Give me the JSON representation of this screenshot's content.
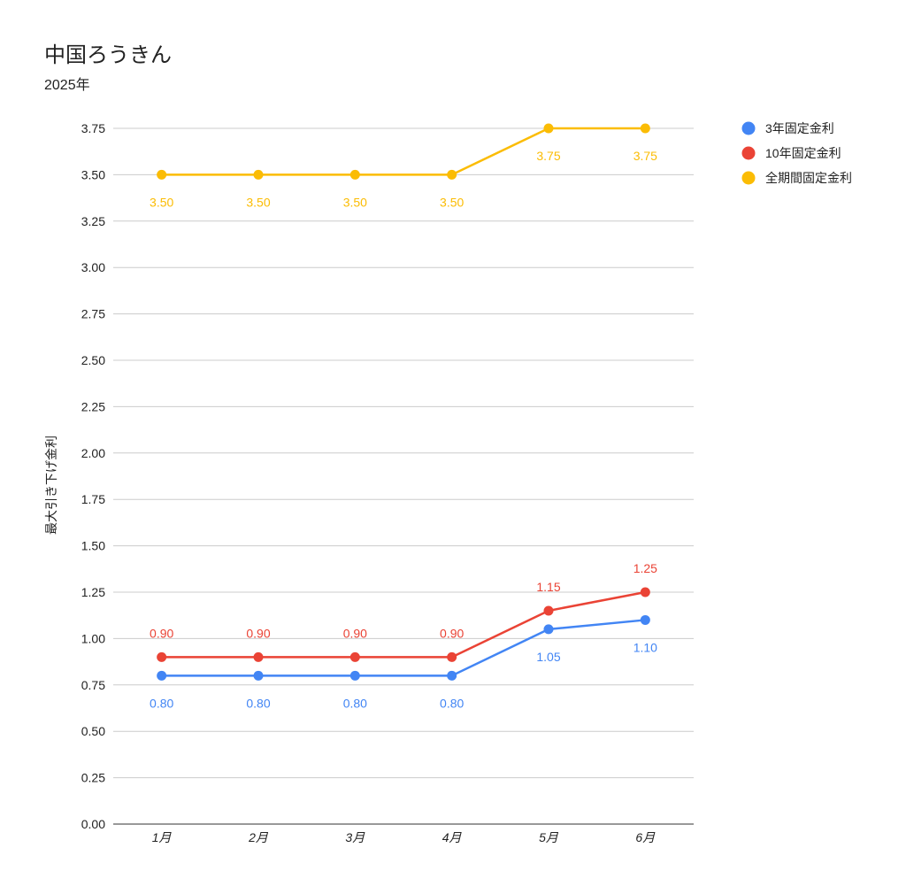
{
  "chart_data": {
    "type": "line",
    "title": "中国ろうきん",
    "subtitle": "2025年",
    "xlabel": "",
    "ylabel": "最大引き下げ金利",
    "categories": [
      "1月",
      "2月",
      "3月",
      "4月",
      "5月",
      "6月"
    ],
    "ylim": [
      0,
      3.75
    ],
    "yticks": [
      "0.00",
      "0.25",
      "0.50",
      "0.75",
      "1.00",
      "1.25",
      "1.50",
      "1.75",
      "2.00",
      "2.25",
      "2.50",
      "2.75",
      "3.00",
      "3.25",
      "3.50",
      "3.75"
    ],
    "grid": true,
    "legend_position": "right",
    "series": [
      {
        "name": "3年固定金利",
        "color": "#4285f4",
        "values": [
          0.8,
          0.8,
          0.8,
          0.8,
          1.05,
          1.1
        ],
        "labels": [
          "0.80",
          "0.80",
          "0.80",
          "0.80",
          "1.05",
          "1.10"
        ],
        "label_position": "below"
      },
      {
        "name": "10年固定金利",
        "color": "#ea4335",
        "values": [
          0.9,
          0.9,
          0.9,
          0.9,
          1.15,
          1.25
        ],
        "labels": [
          "0.90",
          "0.90",
          "0.90",
          "0.90",
          "1.15",
          "1.25"
        ],
        "label_position": "above"
      },
      {
        "name": "全期間固定金利",
        "color": "#fbbc04",
        "values": [
          3.5,
          3.5,
          3.5,
          3.5,
          3.75,
          3.75
        ],
        "labels": [
          "3.50",
          "3.50",
          "3.50",
          "3.50",
          "3.75",
          "3.75"
        ],
        "label_position": "below"
      }
    ]
  }
}
